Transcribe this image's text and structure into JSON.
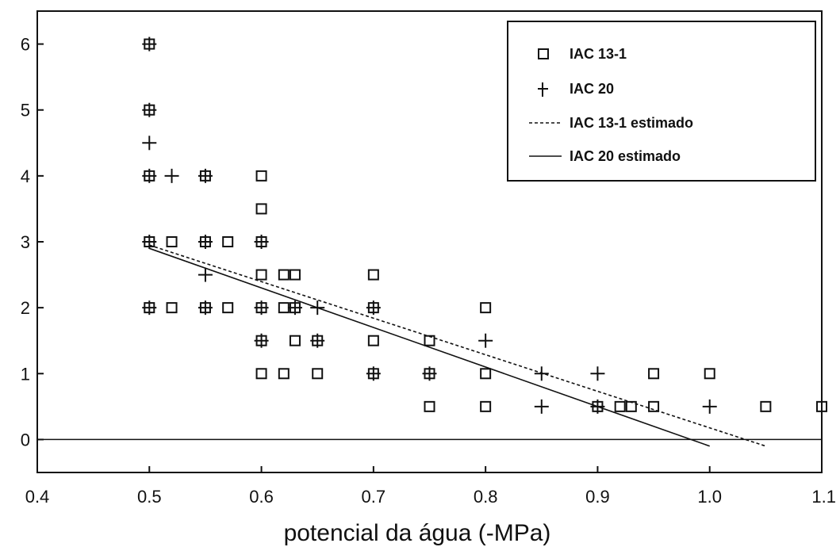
{
  "chart_data": {
    "type": "scatter",
    "title": "",
    "xlabel": "potencial da água (-MPa)",
    "ylabel": "",
    "xlim": [
      0.4,
      1.1
    ],
    "ylim": [
      -0.5,
      6.5
    ],
    "xticks": [
      "0.4",
      "0.5",
      "0.6",
      "0.7",
      "0.8",
      "0.9",
      "1.0",
      "1.1"
    ],
    "yticks": [
      "0",
      "1",
      "2",
      "3",
      "4",
      "5",
      "6"
    ],
    "grid": false,
    "legend_position": "top-right",
    "series": [
      {
        "name": "IAC 13-1",
        "marker": "square",
        "points": [
          [
            0.5,
            6
          ],
          [
            0.5,
            5
          ],
          [
            0.5,
            4
          ],
          [
            0.5,
            3
          ],
          [
            0.5,
            2
          ],
          [
            0.52,
            3
          ],
          [
            0.52,
            2
          ],
          [
            0.55,
            4
          ],
          [
            0.55,
            3
          ],
          [
            0.55,
            2
          ],
          [
            0.57,
            3
          ],
          [
            0.57,
            2
          ],
          [
            0.6,
            4
          ],
          [
            0.6,
            3.5
          ],
          [
            0.6,
            3
          ],
          [
            0.6,
            2.5
          ],
          [
            0.6,
            2
          ],
          [
            0.6,
            1.5
          ],
          [
            0.6,
            1
          ],
          [
            0.62,
            2.5
          ],
          [
            0.62,
            2
          ],
          [
            0.62,
            1
          ],
          [
            0.63,
            2.5
          ],
          [
            0.63,
            2
          ],
          [
            0.63,
            1.5
          ],
          [
            0.65,
            1.5
          ],
          [
            0.65,
            1
          ],
          [
            0.7,
            2.5
          ],
          [
            0.7,
            2
          ],
          [
            0.7,
            1.5
          ],
          [
            0.7,
            1
          ],
          [
            0.75,
            1.5
          ],
          [
            0.75,
            1
          ],
          [
            0.75,
            0.5
          ],
          [
            0.8,
            2
          ],
          [
            0.8,
            1
          ],
          [
            0.8,
            0.5
          ],
          [
            0.9,
            0.5
          ],
          [
            0.92,
            0.5
          ],
          [
            0.93,
            0.5
          ],
          [
            0.95,
            1
          ],
          [
            0.95,
            0.5
          ],
          [
            1.0,
            1
          ],
          [
            1.05,
            0.5
          ],
          [
            1.1,
            0.5
          ]
        ]
      },
      {
        "name": "IAC 20",
        "marker": "plus",
        "points": [
          [
            0.5,
            6
          ],
          [
            0.5,
            5
          ],
          [
            0.5,
            4.5
          ],
          [
            0.5,
            4
          ],
          [
            0.5,
            3
          ],
          [
            0.5,
            2
          ],
          [
            0.52,
            4
          ],
          [
            0.55,
            4
          ],
          [
            0.55,
            3
          ],
          [
            0.55,
            2.5
          ],
          [
            0.55,
            2
          ],
          [
            0.6,
            3
          ],
          [
            0.6,
            2
          ],
          [
            0.6,
            1.5
          ],
          [
            0.63,
            2
          ],
          [
            0.65,
            2
          ],
          [
            0.65,
            1.5
          ],
          [
            0.7,
            2
          ],
          [
            0.7,
            1
          ],
          [
            0.75,
            1
          ],
          [
            0.8,
            1.5
          ],
          [
            0.85,
            1
          ],
          [
            0.85,
            0.5
          ],
          [
            0.9,
            1
          ],
          [
            0.9,
            0.5
          ],
          [
            1.0,
            0.5
          ]
        ]
      },
      {
        "name": "IAC 13-1 estimado",
        "line_style": "dashed",
        "x": [
          0.5,
          1.05
        ],
        "y": [
          2.95,
          -0.1
        ]
      },
      {
        "name": "IAC 20 estimado",
        "line_style": "solid",
        "x": [
          0.5,
          1.0
        ],
        "y": [
          2.9,
          -0.1
        ]
      }
    ]
  }
}
